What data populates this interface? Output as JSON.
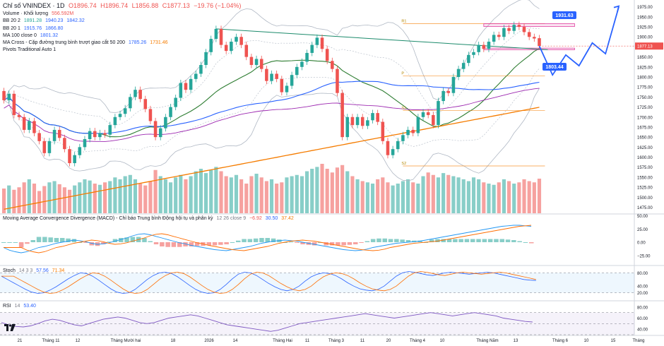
{
  "header": {
    "symbol": "Chỉ số VNINDEX · 1D",
    "open": "O1896.74",
    "high": "H1896.74",
    "low": "L1856.88",
    "close": "C1877.13",
    "change": "−19.76 (−1.04%)",
    "volume_label": "Volume · Khối lượng",
    "volume_value": "556.592M",
    "bb1_label": "BB 20 2",
    "bb1_values": [
      "1891.28",
      "1940.23",
      "1842.32"
    ],
    "bb2_label": "BB 20 1",
    "bb2_values": [
      "1915.76",
      "1866.80"
    ],
    "ma_label": "MA 100 close 0",
    "ma_value": "1801.32",
    "macross_label": "MA Cross - Cặp đường trung bình trượt giao cắt 50 200",
    "macross_values": [
      "1785.26",
      "1731.46"
    ],
    "pivots_label": "Pivots Traditional Auto 1"
  },
  "macd": {
    "label": "Moving Average Convergence Divergence (MACD) - Chỉ báo Trung bình Động hội tụ và phân kỳ",
    "params": "12 26 close 9",
    "values": [
      "−6.92",
      "30.50",
      "37.42"
    ]
  },
  "stoch": {
    "label": "Stoch",
    "params": "14 3 3",
    "values": [
      "57.56",
      "71.34"
    ]
  },
  "rsi": {
    "label": "RSI",
    "params": "14",
    "value": "53.40"
  },
  "price_axis": {
    "ticks": [
      "1975.00",
      "1950.00",
      "1925.00",
      "1900.00",
      "1875.00",
      "1850.00",
      "1825.00",
      "1800.00",
      "1775.00",
      "1750.00",
      "1725.00",
      "1700.00",
      "1675.00",
      "1650.00",
      "1625.00",
      "1600.00",
      "1575.00",
      "1550.00",
      "1525.00",
      "1500.00",
      "1475.00"
    ],
    "current_price": "1877.13"
  },
  "macd_axis": {
    "ticks": [
      "50.00",
      "25.00",
      "0.00",
      "−25.00"
    ]
  },
  "stoch_axis": {
    "ticks": [
      "80.00",
      "40.00",
      "20.00"
    ]
  },
  "rsi_axis": {
    "ticks": [
      "80.00",
      "60.00",
      "40.00"
    ]
  },
  "time_axis": {
    "labels": [
      "21",
      "Tháng 11",
      "12",
      "Tháng Mười hai",
      "18",
      "2026",
      "14",
      "Tháng Hai",
      "11",
      "Tháng 3",
      "11",
      "20",
      "Tháng 4",
      "10",
      "Tháng Năm",
      "13",
      "Tháng 6",
      "10",
      "15",
      "Tháng"
    ]
  },
  "pivot_labels": [
    "R1",
    "P",
    "S1",
    "S2"
  ],
  "annotations": {
    "target_up": "1931.63",
    "target_down": "1803.44"
  },
  "colors": {
    "up": "#26a69a",
    "down": "#ef5350",
    "bb_basis": "#2e7d32",
    "bb_band": "#b0b8c4",
    "ma100": "#2962ff",
    "ma50": "#9c27b0",
    "ma200": "#f57c00",
    "trendline": "#1b8a6b",
    "projection": "#2962ff",
    "zone": "#e040a0",
    "macd_line": "#2196f3",
    "signal_line": "#ff6d00",
    "stoch_k": "#2962ff",
    "stoch_d": "#ff6d00",
    "rsi_line": "#7e57c2"
  },
  "chart_data": {
    "type": "candlestick",
    "ylim": [
      1460,
      1985
    ],
    "candles": [
      {
        "o": 1765,
        "c": 1742
      },
      {
        "o": 1742,
        "c": 1758
      },
      {
        "o": 1758,
        "c": 1705
      },
      {
        "o": 1705,
        "c": 1700
      },
      {
        "o": 1700,
        "c": 1668
      },
      {
        "o": 1668,
        "c": 1690
      },
      {
        "o": 1690,
        "c": 1660
      },
      {
        "o": 1660,
        "c": 1640
      },
      {
        "o": 1640,
        "c": 1610
      },
      {
        "o": 1610,
        "c": 1640
      },
      {
        "o": 1640,
        "c": 1668
      },
      {
        "o": 1668,
        "c": 1648
      },
      {
        "o": 1648,
        "c": 1620
      },
      {
        "o": 1620,
        "c": 1585
      },
      {
        "o": 1585,
        "c": 1605
      },
      {
        "o": 1605,
        "c": 1625
      },
      {
        "o": 1625,
        "c": 1645
      },
      {
        "o": 1645,
        "c": 1665
      },
      {
        "o": 1665,
        "c": 1650
      },
      {
        "o": 1650,
        "c": 1660
      },
      {
        "o": 1660,
        "c": 1656
      },
      {
        "o": 1656,
        "c": 1680
      },
      {
        "o": 1680,
        "c": 1700
      },
      {
        "o": 1700,
        "c": 1708
      },
      {
        "o": 1708,
        "c": 1722
      },
      {
        "o": 1722,
        "c": 1750
      },
      {
        "o": 1750,
        "c": 1768
      },
      {
        "o": 1768,
        "c": 1745
      },
      {
        "o": 1745,
        "c": 1720
      },
      {
        "o": 1720,
        "c": 1690
      },
      {
        "o": 1690,
        "c": 1650
      },
      {
        "o": 1650,
        "c": 1672
      },
      {
        "o": 1672,
        "c": 1700
      },
      {
        "o": 1700,
        "c": 1725
      },
      {
        "o": 1725,
        "c": 1748
      },
      {
        "o": 1748,
        "c": 1785
      },
      {
        "o": 1785,
        "c": 1768
      },
      {
        "o": 1768,
        "c": 1795
      },
      {
        "o": 1795,
        "c": 1808
      },
      {
        "o": 1808,
        "c": 1830
      },
      {
        "o": 1830,
        "c": 1862
      },
      {
        "o": 1862,
        "c": 1895
      },
      {
        "o": 1895,
        "c": 1920
      },
      {
        "o": 1920,
        "c": 1880
      },
      {
        "o": 1880,
        "c": 1865
      },
      {
        "o": 1865,
        "c": 1888
      },
      {
        "o": 1888,
        "c": 1900
      },
      {
        "o": 1900,
        "c": 1880
      },
      {
        "o": 1880,
        "c": 1850
      },
      {
        "o": 1850,
        "c": 1830
      },
      {
        "o": 1830,
        "c": 1845
      },
      {
        "o": 1845,
        "c": 1820
      },
      {
        "o": 1820,
        "c": 1790
      },
      {
        "o": 1790,
        "c": 1808
      },
      {
        "o": 1808,
        "c": 1795
      },
      {
        "o": 1795,
        "c": 1762
      },
      {
        "o": 1762,
        "c": 1778
      },
      {
        "o": 1778,
        "c": 1805
      },
      {
        "o": 1805,
        "c": 1825
      },
      {
        "o": 1825,
        "c": 1838
      },
      {
        "o": 1838,
        "c": 1860
      },
      {
        "o": 1860,
        "c": 1880
      },
      {
        "o": 1880,
        "c": 1898
      },
      {
        "o": 1898,
        "c": 1870
      },
      {
        "o": 1870,
        "c": 1840
      },
      {
        "o": 1840,
        "c": 1820
      },
      {
        "o": 1820,
        "c": 1760
      },
      {
        "o": 1760,
        "c": 1650
      },
      {
        "o": 1650,
        "c": 1700
      },
      {
        "o": 1700,
        "c": 1680
      },
      {
        "o": 1680,
        "c": 1700
      },
      {
        "o": 1700,
        "c": 1678
      },
      {
        "o": 1678,
        "c": 1692
      },
      {
        "o": 1692,
        "c": 1710
      },
      {
        "o": 1710,
        "c": 1688
      },
      {
        "o": 1688,
        "c": 1640
      },
      {
        "o": 1640,
        "c": 1605
      },
      {
        "o": 1605,
        "c": 1620
      },
      {
        "o": 1620,
        "c": 1640
      },
      {
        "o": 1640,
        "c": 1655
      },
      {
        "o": 1655,
        "c": 1668
      },
      {
        "o": 1668,
        "c": 1660
      },
      {
        "o": 1660,
        "c": 1700
      },
      {
        "o": 1700,
        "c": 1712
      },
      {
        "o": 1712,
        "c": 1705
      },
      {
        "o": 1705,
        "c": 1680
      },
      {
        "o": 1680,
        "c": 1740
      },
      {
        "o": 1740,
        "c": 1765
      },
      {
        "o": 1765,
        "c": 1760
      },
      {
        "o": 1760,
        "c": 1800
      },
      {
        "o": 1800,
        "c": 1820
      },
      {
        "o": 1820,
        "c": 1835
      },
      {
        "o": 1835,
        "c": 1855
      },
      {
        "o": 1855,
        "c": 1862
      },
      {
        "o": 1862,
        "c": 1880
      },
      {
        "o": 1880,
        "c": 1870
      },
      {
        "o": 1870,
        "c": 1888
      },
      {
        "o": 1888,
        "c": 1905
      },
      {
        "o": 1905,
        "c": 1900
      },
      {
        "o": 1900,
        "c": 1922
      },
      {
        "o": 1922,
        "c": 1915
      },
      {
        "o": 1915,
        "c": 1930
      },
      {
        "o": 1930,
        "c": 1925
      },
      {
        "o": 1925,
        "c": 1912
      },
      {
        "o": 1912,
        "c": 1900
      },
      {
        "o": 1900,
        "c": 1896
      },
      {
        "o": 1896.74,
        "c": 1877.13
      }
    ],
    "volumes": [
      40,
      45,
      38,
      42,
      50,
      55,
      48,
      36,
      44,
      50,
      52,
      47,
      42,
      38,
      45,
      50,
      55,
      53,
      48,
      46,
      50,
      52,
      58,
      55,
      60,
      62,
      55,
      48,
      45,
      52,
      70,
      60,
      55,
      50,
      58,
      62,
      55,
      60,
      68,
      72,
      65,
      70,
      75,
      68,
      60,
      58,
      62,
      55,
      48,
      60,
      64,
      58,
      52,
      55,
      48,
      50,
      58,
      60,
      62,
      60,
      68,
      72,
      75,
      80,
      72,
      66,
      74,
      78,
      68,
      60,
      55,
      52,
      50,
      48,
      55,
      58,
      50,
      45,
      48,
      52,
      55,
      50,
      48,
      60,
      66,
      62,
      58,
      65,
      62,
      60,
      58,
      55,
      52,
      58,
      55,
      50,
      48,
      46,
      50,
      55,
      52,
      48,
      50,
      55,
      52,
      50,
      56
    ],
    "macd": [
      -10,
      -15,
      -18,
      -20,
      -18,
      -14,
      -10,
      -8,
      -5,
      -2,
      0,
      2,
      4,
      3,
      1,
      -2,
      -4,
      -3,
      -1,
      2,
      5,
      8,
      12,
      15,
      16,
      14,
      11,
      8,
      5,
      2,
      -1,
      -3,
      -6,
      -8,
      -10,
      -12,
      -14,
      -15,
      -16,
      -14,
      -12,
      -10,
      -8,
      -5,
      -2,
      0,
      2,
      3,
      4,
      3,
      2,
      0,
      -2,
      -4,
      -6,
      -8,
      -10,
      -12,
      -14,
      -15,
      -16,
      -15,
      -13,
      -10,
      -8,
      -6,
      -4,
      -2,
      -1,
      0,
      1,
      2,
      4,
      6,
      8,
      10,
      12,
      14,
      16,
      18,
      20,
      22,
      24,
      26,
      28,
      30,
      31,
      32,
      32,
      31,
      30
    ],
    "stoch": [
      70,
      60,
      50,
      40,
      30,
      22,
      18,
      20,
      28,
      38,
      50,
      62,
      72,
      80,
      78,
      70,
      58,
      45,
      32,
      22,
      18,
      20,
      30,
      45,
      60,
      72,
      80,
      82,
      78,
      68,
      55,
      42,
      30,
      22,
      18,
      20,
      30,
      45,
      62,
      76,
      82,
      80,
      72,
      60,
      48,
      38,
      30,
      26,
      30,
      40,
      55,
      68,
      76,
      80,
      78,
      72,
      62,
      50,
      40,
      32,
      28,
      26,
      30,
      40,
      55,
      70,
      80,
      84,
      82,
      78,
      74,
      72,
      76,
      80,
      82,
      80,
      78,
      76,
      78,
      80,
      82,
      80,
      76,
      72,
      68,
      64,
      60,
      58,
      57
    ],
    "rsi": [
      52,
      48,
      45,
      44,
      46,
      50,
      55,
      58,
      56,
      52,
      48,
      46,
      50,
      54,
      58,
      60,
      62,
      60,
      56,
      52,
      50,
      52,
      56,
      60,
      62,
      64,
      66,
      64,
      60,
      56,
      52,
      48,
      46,
      44,
      42,
      40,
      38,
      36,
      38,
      42,
      46,
      50,
      52,
      54,
      56,
      58,
      60,
      62,
      64,
      66,
      68,
      66,
      64,
      62,
      60,
      62,
      64,
      66,
      68,
      70,
      68,
      66,
      64,
      66,
      68,
      70,
      68,
      66,
      64,
      60,
      58,
      56,
      54,
      53
    ],
    "pivots": {
      "R1": 1933,
      "P": 1803,
      "S1": 1716,
      "S2": 1578
    },
    "projection": [
      [
        1920,
        1877
      ],
      [
        1935,
        1805
      ],
      [
        1950,
        1855
      ],
      [
        1965,
        1828
      ],
      [
        1980,
        1885
      ],
      [
        1995,
        1858
      ],
      [
        2010,
        1975
      ]
    ],
    "zones": [
      {
        "top": 1933,
        "bottom": 1926
      },
      {
        "top": 1872,
        "bottom": 1868
      }
    ]
  }
}
